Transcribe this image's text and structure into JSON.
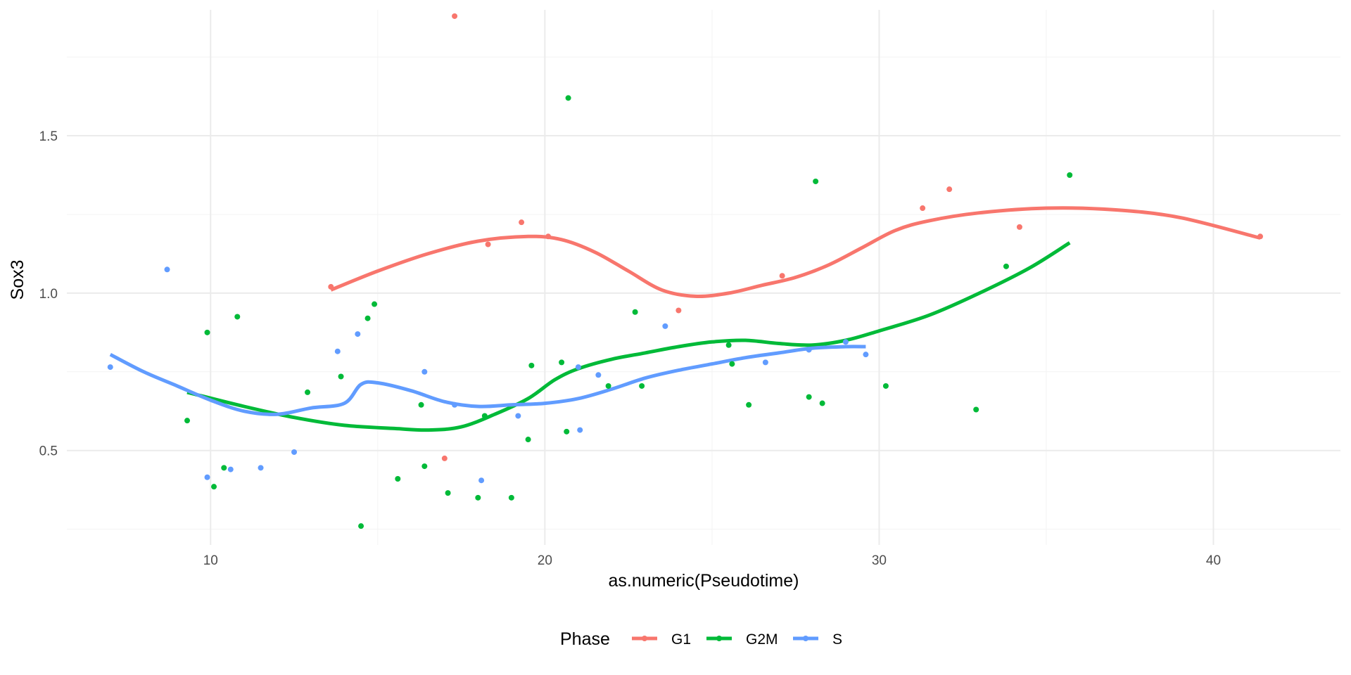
{
  "chart_data": {
    "type": "scatter",
    "title": "",
    "xlabel": "as.numeric(Pseudotime)",
    "ylabel": "Sox3",
    "xlim": [
      5.7,
      43.8
    ],
    "ylim": [
      0.2,
      1.9
    ],
    "x_ticks": [
      10,
      20,
      30,
      40
    ],
    "y_ticks": [
      0.5,
      1.0,
      1.5
    ],
    "x_tick_labels": [
      "10",
      "20",
      "30",
      "40"
    ],
    "y_tick_labels": [
      "0.5",
      "1.0",
      "1.5"
    ],
    "grid": true,
    "legend": {
      "title": "Phase",
      "position": "bottom"
    },
    "series": [
      {
        "name": "G1",
        "color": "#F8766D",
        "points": [
          [
            13.6,
            1.02
          ],
          [
            17.3,
            1.88
          ],
          [
            18.3,
            1.155
          ],
          [
            19.3,
            1.225
          ],
          [
            20.1,
            1.18
          ],
          [
            17.0,
            0.475
          ],
          [
            24.0,
            0.945
          ],
          [
            27.1,
            1.055
          ],
          [
            31.3,
            1.27
          ],
          [
            32.1,
            1.33
          ],
          [
            34.2,
            1.21
          ],
          [
            41.4,
            1.18
          ]
        ],
        "smooth": [
          [
            13.6,
            1.01
          ],
          [
            15.0,
            1.07
          ],
          [
            16.5,
            1.125
          ],
          [
            18.0,
            1.165
          ],
          [
            19.5,
            1.18
          ],
          [
            20.5,
            1.17
          ],
          [
            21.5,
            1.13
          ],
          [
            22.5,
            1.07
          ],
          [
            23.5,
            1.01
          ],
          [
            24.5,
            0.99
          ],
          [
            25.5,
            1.0
          ],
          [
            26.5,
            1.025
          ],
          [
            27.5,
            1.05
          ],
          [
            28.5,
            1.09
          ],
          [
            29.5,
            1.145
          ],
          [
            30.5,
            1.2
          ],
          [
            31.5,
            1.23
          ],
          [
            33.0,
            1.255
          ],
          [
            35.0,
            1.27
          ],
          [
            37.0,
            1.265
          ],
          [
            39.0,
            1.24
          ],
          [
            41.4,
            1.175
          ]
        ]
      },
      {
        "name": "G2M",
        "color": "#00BA38",
        "points": [
          [
            9.3,
            0.595
          ],
          [
            9.9,
            0.875
          ],
          [
            10.1,
            0.385
          ],
          [
            10.4,
            0.445
          ],
          [
            10.8,
            0.925
          ],
          [
            12.9,
            0.685
          ],
          [
            13.9,
            0.735
          ],
          [
            14.5,
            0.26
          ],
          [
            14.7,
            0.92
          ],
          [
            14.9,
            0.965
          ],
          [
            15.6,
            0.41
          ],
          [
            16.3,
            0.645
          ],
          [
            16.4,
            0.45
          ],
          [
            17.1,
            0.365
          ],
          [
            18.0,
            0.35
          ],
          [
            18.2,
            0.61
          ],
          [
            19.0,
            0.35
          ],
          [
            19.5,
            0.535
          ],
          [
            19.6,
            0.77
          ],
          [
            20.5,
            0.78
          ],
          [
            20.65,
            0.56
          ],
          [
            20.7,
            1.62
          ],
          [
            21.9,
            0.705
          ],
          [
            22.7,
            0.94
          ],
          [
            22.9,
            0.705
          ],
          [
            25.5,
            0.835
          ],
          [
            25.6,
            0.775
          ],
          [
            26.1,
            0.645
          ],
          [
            27.9,
            0.67
          ],
          [
            28.1,
            1.355
          ],
          [
            28.3,
            0.65
          ],
          [
            30.2,
            0.705
          ],
          [
            32.9,
            0.63
          ],
          [
            33.8,
            1.085
          ],
          [
            35.7,
            1.375
          ]
        ],
        "smooth": [
          [
            9.3,
            0.685
          ],
          [
            11.0,
            0.64
          ],
          [
            12.5,
            0.605
          ],
          [
            14.0,
            0.58
          ],
          [
            15.5,
            0.57
          ],
          [
            16.5,
            0.565
          ],
          [
            17.5,
            0.575
          ],
          [
            18.5,
            0.615
          ],
          [
            19.5,
            0.665
          ],
          [
            20.3,
            0.725
          ],
          [
            21.0,
            0.76
          ],
          [
            22.0,
            0.79
          ],
          [
            23.0,
            0.81
          ],
          [
            24.0,
            0.83
          ],
          [
            25.0,
            0.845
          ],
          [
            26.0,
            0.85
          ],
          [
            27.0,
            0.84
          ],
          [
            28.0,
            0.835
          ],
          [
            29.0,
            0.85
          ],
          [
            30.0,
            0.88
          ],
          [
            31.5,
            0.93
          ],
          [
            33.0,
            1.0
          ],
          [
            34.5,
            1.08
          ],
          [
            35.7,
            1.16
          ]
        ]
      },
      {
        "name": "S",
        "color": "#619CFF",
        "points": [
          [
            7.0,
            0.765
          ],
          [
            8.7,
            1.075
          ],
          [
            9.9,
            0.415
          ],
          [
            10.6,
            0.44
          ],
          [
            11.5,
            0.445
          ],
          [
            12.5,
            0.495
          ],
          [
            13.8,
            0.815
          ],
          [
            14.4,
            0.87
          ],
          [
            16.4,
            0.75
          ],
          [
            17.3,
            0.645
          ],
          [
            18.1,
            0.405
          ],
          [
            19.2,
            0.61
          ],
          [
            21.0,
            0.765
          ],
          [
            21.05,
            0.565
          ],
          [
            21.6,
            0.74
          ],
          [
            23.6,
            0.895
          ],
          [
            26.6,
            0.78
          ],
          [
            27.9,
            0.82
          ],
          [
            29.0,
            0.845
          ],
          [
            29.6,
            0.805
          ]
        ],
        "smooth": [
          [
            7.0,
            0.805
          ],
          [
            8.0,
            0.75
          ],
          [
            9.0,
            0.705
          ],
          [
            10.0,
            0.66
          ],
          [
            11.0,
            0.625
          ],
          [
            12.0,
            0.615
          ],
          [
            13.0,
            0.635
          ],
          [
            14.0,
            0.65
          ],
          [
            14.5,
            0.71
          ],
          [
            15.0,
            0.715
          ],
          [
            16.0,
            0.69
          ],
          [
            17.0,
            0.655
          ],
          [
            18.0,
            0.64
          ],
          [
            19.0,
            0.645
          ],
          [
            20.0,
            0.65
          ],
          [
            21.0,
            0.665
          ],
          [
            22.0,
            0.695
          ],
          [
            23.0,
            0.73
          ],
          [
            24.0,
            0.755
          ],
          [
            25.0,
            0.775
          ],
          [
            26.0,
            0.795
          ],
          [
            27.0,
            0.81
          ],
          [
            28.0,
            0.825
          ],
          [
            29.0,
            0.83
          ],
          [
            29.6,
            0.83
          ]
        ]
      }
    ]
  }
}
